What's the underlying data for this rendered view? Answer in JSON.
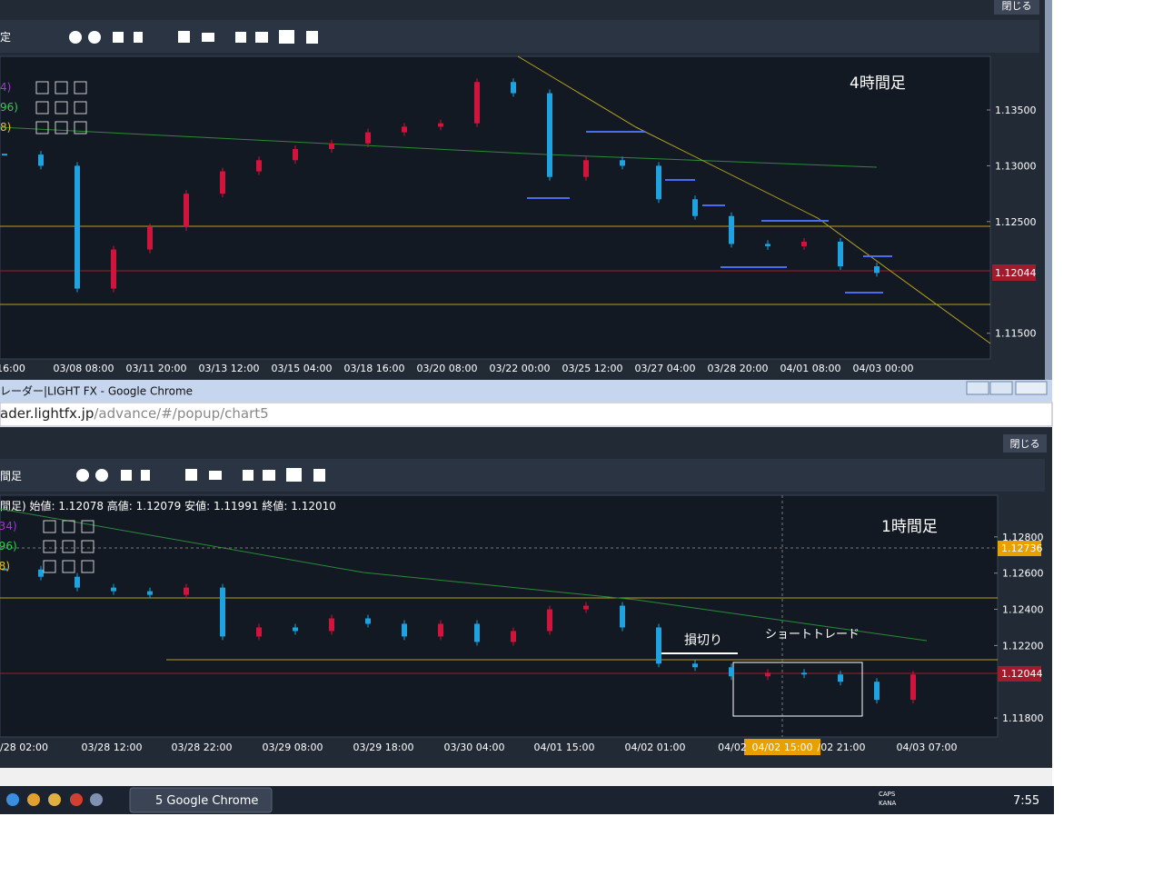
{
  "top_window": {
    "close_button": "閉じる",
    "toolbar_left": "定",
    "timeframe_label": "4時間足",
    "indicator_labels": [
      "4)",
      "96)",
      "8)"
    ],
    "ylim": [
      1.1127,
      1.1398
    ],
    "price_ticks": [
      {
        "value": 1.135,
        "label": "1.13500"
      },
      {
        "value": 1.13,
        "label": "1.13000"
      },
      {
        "value": 1.125,
        "label": "1.12500"
      },
      {
        "value": 1.115,
        "label": "1.11500"
      }
    ],
    "current_price": {
      "value": 1.12044,
      "label": "1.12044"
    },
    "time_labels": [
      "16:00",
      "03/08 08:00",
      "03/11 20:00",
      "03/13 12:00",
      "03/15 04:00",
      "03/18 16:00",
      "03/20 08:00",
      "03/22 00:00",
      "03/25 12:00",
      "03/27 04:00",
      "03/28 20:00",
      "04/01 08:00",
      "04/03 00:00"
    ],
    "closes": [
      1.131,
      1.13,
      1.119,
      1.1225,
      1.1245,
      1.1275,
      1.1295,
      1.1305,
      1.1315,
      1.132,
      1.133,
      1.1335,
      1.1338,
      1.1375,
      1.1365,
      1.129,
      1.1305,
      1.13,
      1.127,
      1.1255,
      1.123,
      1.1228,
      1.1232,
      1.121,
      1.1204
    ]
  },
  "browser": {
    "title": "レーダー|LIGHT FX - Google Chrome",
    "url_host": "ader.lightfx.jp",
    "url_path": "/advance/#/popup/chart5"
  },
  "bottom_window": {
    "close_button": "閉じる",
    "toolbar_left": "間足",
    "timeframe_label": "1時間足",
    "ohlc": "間足) 始値: 1.12078 高値: 1.12079 安値: 1.11991 終値: 1.12010",
    "indicator_labels": [
      "(34)",
      "(96)",
      "(8)"
    ],
    "ylim": [
      1.11695,
      1.1303
    ],
    "price_ticks": [
      {
        "value": 1.128,
        "label": "1.12800"
      },
      {
        "value": 1.126,
        "label": "1.12600"
      },
      {
        "value": 1.124,
        "label": "1.12400"
      },
      {
        "value": 1.122,
        "label": "1.12200"
      },
      {
        "value": 1.118,
        "label": "1.11800"
      }
    ],
    "current_price": {
      "value": 1.12044,
      "label": "1.12044"
    },
    "crosshair_price": {
      "value": 1.12736,
      "label": "1.12736"
    },
    "crosshair_time": "04/02 15:00",
    "annotations": [
      "損切り",
      "ショートトレード"
    ],
    "time_labels": [
      "3/28 02:00",
      "03/28 12:00",
      "03/28 22:00",
      "03/29 08:00",
      "03/29 18:00",
      "03/30 04:00",
      "04/01 15:00",
      "04/02 01:00",
      "04/02",
      "/02 21:00",
      "04/03 07:00"
    ],
    "closes": [
      1.1262,
      1.1258,
      1.1252,
      1.125,
      1.1248,
      1.1252,
      1.1225,
      1.123,
      1.1228,
      1.1235,
      1.1232,
      1.1225,
      1.1232,
      1.1222,
      1.1228,
      1.124,
      1.1242,
      1.123,
      1.121,
      1.1208,
      1.1203,
      1.1205,
      1.1204,
      1.12,
      1.119,
      1.1204
    ]
  },
  "taskbar": {
    "chrome_button": "5 Google Chrome",
    "caps": "CAPS",
    "kana": "KANA",
    "clock": "7:55"
  }
}
